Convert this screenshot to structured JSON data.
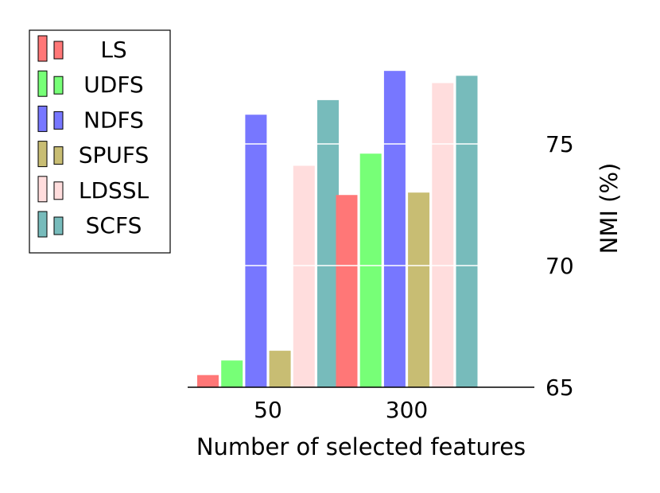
{
  "chart_data": {
    "type": "bar",
    "categories": [
      "50",
      "300"
    ],
    "series": [
      {
        "name": "LS",
        "color": "#ff7777",
        "values": [
          65.5,
          72.9
        ]
      },
      {
        "name": "UDFS",
        "color": "#77ff77",
        "values": [
          66.1,
          74.6
        ]
      },
      {
        "name": "NDFS",
        "color": "#7777ff",
        "values": [
          76.2,
          78.0
        ]
      },
      {
        "name": "SPUFS",
        "color": "#c8bd73",
        "values": [
          66.5,
          73.0
        ]
      },
      {
        "name": "LDSSL",
        "color": "#ffdddd",
        "values": [
          74.1,
          77.5
        ]
      },
      {
        "name": "SCFS",
        "color": "#77bbbb",
        "values": [
          76.8,
          77.8
        ]
      }
    ],
    "xlabel": "Number of selected features",
    "ylabel": "NMI (%)",
    "ylim": [
      65,
      78.3
    ],
    "yticks": [
      65,
      70,
      75
    ],
    "y_axis_side": "right",
    "grid": "horizontal-white-over-bars",
    "legend_position": "top-left"
  }
}
